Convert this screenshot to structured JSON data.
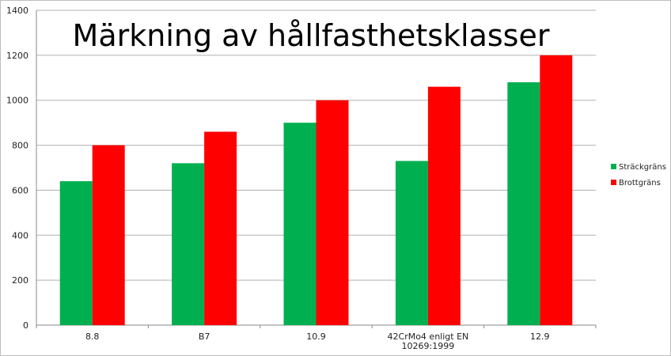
{
  "chart_data": {
    "type": "bar",
    "title": "Märkning av hållfasthetsklasser",
    "categories": [
      [
        "8.8"
      ],
      [
        "B7"
      ],
      [
        "10.9"
      ],
      [
        "42CrMo4 enligt EN",
        "10269:1999"
      ],
      [
        "12.9"
      ]
    ],
    "series": [
      {
        "name": "Sträckgräns",
        "color": "#00b050",
        "values": [
          640,
          720,
          900,
          730,
          1080
        ]
      },
      {
        "name": "Brottgräns",
        "color": "#ff0000",
        "values": [
          800,
          860,
          1000,
          1060,
          1200
        ]
      }
    ],
    "ylim": [
      0,
      1400
    ],
    "yticks": [
      0,
      200,
      400,
      600,
      800,
      1000,
      1200,
      1400
    ],
    "grid": true,
    "legend_position": "right"
  }
}
